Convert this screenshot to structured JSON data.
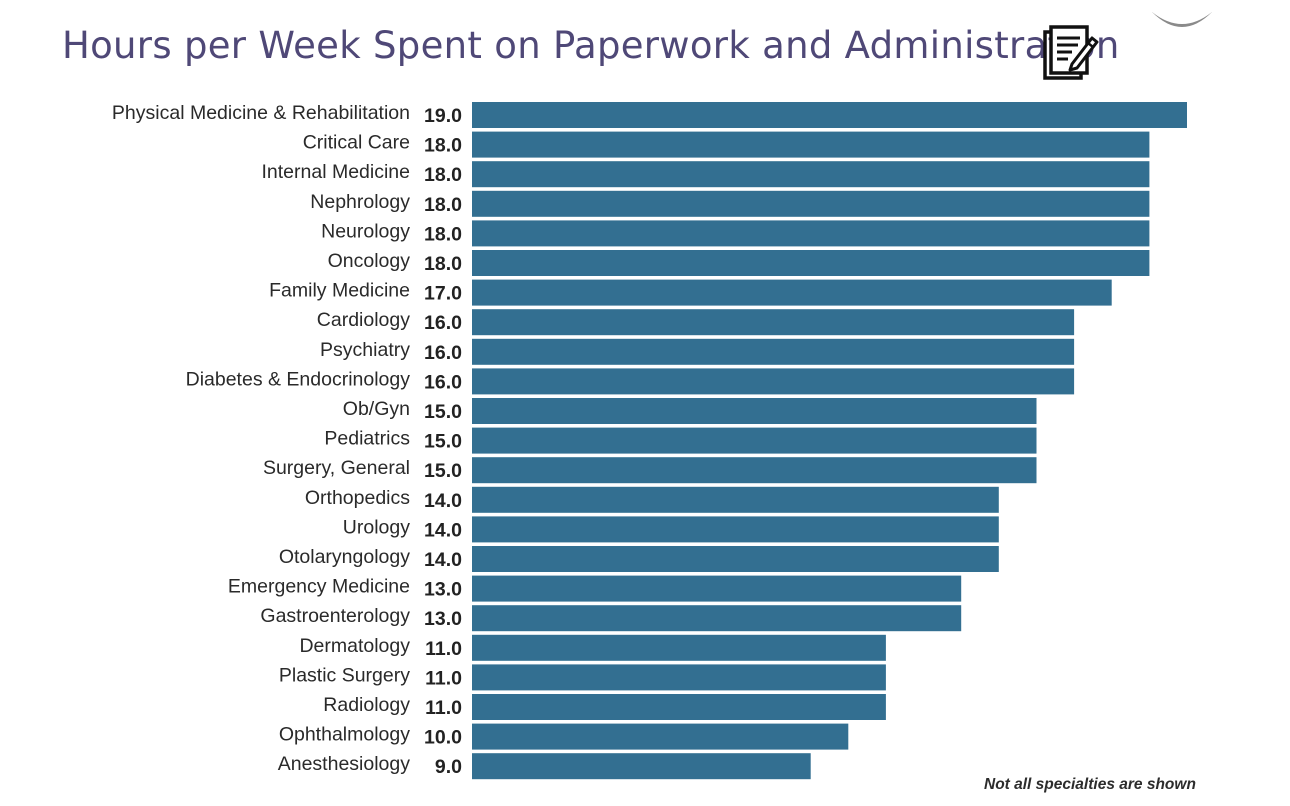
{
  "title": "Hours per Week Spent on Paperwork and Administration",
  "icons": {
    "title_icon": "clipboard-pen-icon"
  },
  "colors": {
    "bar": "#336f91",
    "title": "#4f4877"
  },
  "footnote": "Not all specialties are shown",
  "chart_data": {
    "type": "bar",
    "orientation": "horizontal",
    "title": "Hours per Week Spent on Paperwork and Administration",
    "xlabel": "",
    "ylabel": "",
    "xlim": [
      0,
      19
    ],
    "grid": false,
    "legend": "none",
    "categories": [
      "Physical Medicine & Rehabilitation",
      "Critical Care",
      "Internal Medicine",
      "Nephrology",
      "Neurology",
      "Oncology",
      "Family Medicine",
      "Cardiology",
      "Psychiatry",
      "Diabetes & Endocrinology",
      "Ob/Gyn",
      "Pediatrics",
      "Surgery, General",
      "Orthopedics",
      "Urology",
      "Otolaryngology",
      "Emergency Medicine",
      "Gastroenterology",
      "Dermatology",
      "Plastic Surgery",
      "Radiology",
      "Ophthalmology",
      "Anesthesiology"
    ],
    "values": [
      19.0,
      18.0,
      18.0,
      18.0,
      18.0,
      18.0,
      17.0,
      16.0,
      16.0,
      16.0,
      15.0,
      15.0,
      15.0,
      14.0,
      14.0,
      14.0,
      13.0,
      13.0,
      11.0,
      11.0,
      11.0,
      10.0,
      9.0
    ],
    "value_labels": [
      "19.0",
      "18.0",
      "18.0",
      "18.0",
      "18.0",
      "18.0",
      "17.0",
      "16.0",
      "16.0",
      "16.0",
      "15.0",
      "15.0",
      "15.0",
      "14.0",
      "14.0",
      "14.0",
      "13.0",
      "13.0",
      "11.0",
      "11.0",
      "11.0",
      "10.0",
      "9.0"
    ]
  }
}
